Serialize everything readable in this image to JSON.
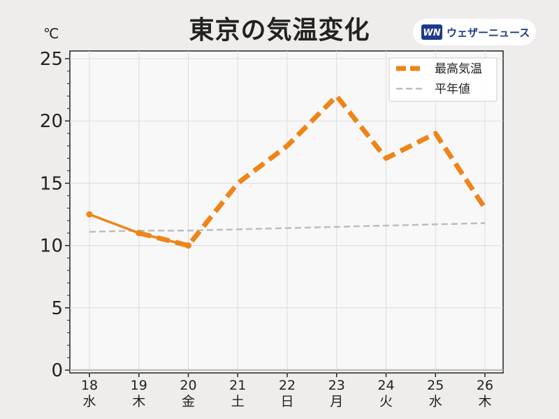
{
  "header": {
    "title": "東京の気温変化",
    "unit": "℃",
    "brand": "ウェザーニュース",
    "logo_icon": "wn-logo-icon"
  },
  "chart_data": {
    "type": "line",
    "title": "東京の気温変化",
    "xlabel": "",
    "ylabel": "℃",
    "ylim": [
      0,
      25
    ],
    "yticks": [
      0,
      5,
      10,
      15,
      20,
      25
    ],
    "grid": true,
    "legend_position": "top-right",
    "categories": [
      {
        "day": "18",
        "weekday": "水",
        "color": "#222222"
      },
      {
        "day": "19",
        "weekday": "木",
        "color": "#222222"
      },
      {
        "day": "20",
        "weekday": "金",
        "color": "#222222"
      },
      {
        "day": "21",
        "weekday": "土",
        "color": "#2b8fd6"
      },
      {
        "day": "22",
        "weekday": "日",
        "color": "#d63a3a"
      },
      {
        "day": "23",
        "weekday": "月",
        "color": "#d63a3a"
      },
      {
        "day": "24",
        "weekday": "火",
        "color": "#222222"
      },
      {
        "day": "25",
        "weekday": "水",
        "color": "#222222"
      },
      {
        "day": "26",
        "weekday": "木",
        "color": "#222222"
      }
    ],
    "series": [
      {
        "name": "最高気温",
        "color": "#ef8418",
        "observed_values": [
          12.5,
          11,
          10
        ],
        "forecast_values": [
          null,
          11,
          10,
          15,
          18,
          22,
          17,
          19,
          13
        ]
      },
      {
        "name": "平年値",
        "color": "#bdbdbd",
        "values": [
          11.1,
          11.2,
          11.2,
          11.3,
          11.4,
          11.5,
          11.6,
          11.7,
          11.8
        ]
      }
    ]
  }
}
